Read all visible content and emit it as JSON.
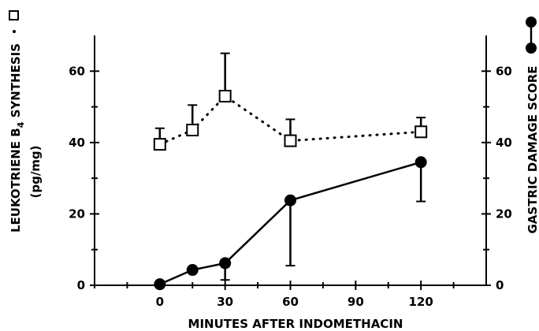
{
  "chart_data": {
    "type": "line",
    "xlabel": "MINUTES AFTER INDOMETHACIN",
    "ylabel_left": {
      "line1_pre": "LEUKOTRIENE B",
      "line1_sub": "4",
      "line1_post": " SYNTHESIS",
      "line2": "(pg/mg)"
    },
    "ylabel_right": "GASTRIC DAMAGE SCORE",
    "x_ticks": [
      "0",
      "30",
      "60",
      "90",
      "120"
    ],
    "x_tick_values": [
      0,
      30,
      60,
      90,
      120
    ],
    "x_minor_ticks": [
      -30,
      -15,
      15,
      45,
      75,
      105,
      135
    ],
    "xlim": [
      -30,
      150
    ],
    "y_ticks_left": [
      "0",
      "20",
      "40",
      "60"
    ],
    "y_ticks_right": [
      "0",
      "20",
      "40",
      "60"
    ],
    "y_tick_values": [
      0,
      20,
      40,
      60
    ],
    "ylim_left": [
      0,
      70
    ],
    "ylim_right": [
      0,
      70
    ],
    "series": [
      {
        "key": "ltb4",
        "axis": "left",
        "marker": "open-square",
        "line_style": "dotted",
        "legend_symbol": "□ ·",
        "x": [
          0,
          15,
          30,
          60,
          120
        ],
        "y": [
          39.5,
          43.5,
          53,
          40.5,
          43
        ],
        "error_upper": [
          44,
          50.5,
          65,
          46.5,
          47
        ]
      },
      {
        "key": "damage",
        "axis": "right",
        "marker": "filled-circle",
        "line_style": "solid",
        "legend_symbol": "●—●",
        "x": [
          0,
          15,
          30,
          60,
          120
        ],
        "y": [
          0.3,
          4.3,
          6.2,
          23.8,
          34.5
        ],
        "error_lower": [
          null,
          null,
          1.5,
          5.5,
          23.5
        ]
      }
    ]
  }
}
